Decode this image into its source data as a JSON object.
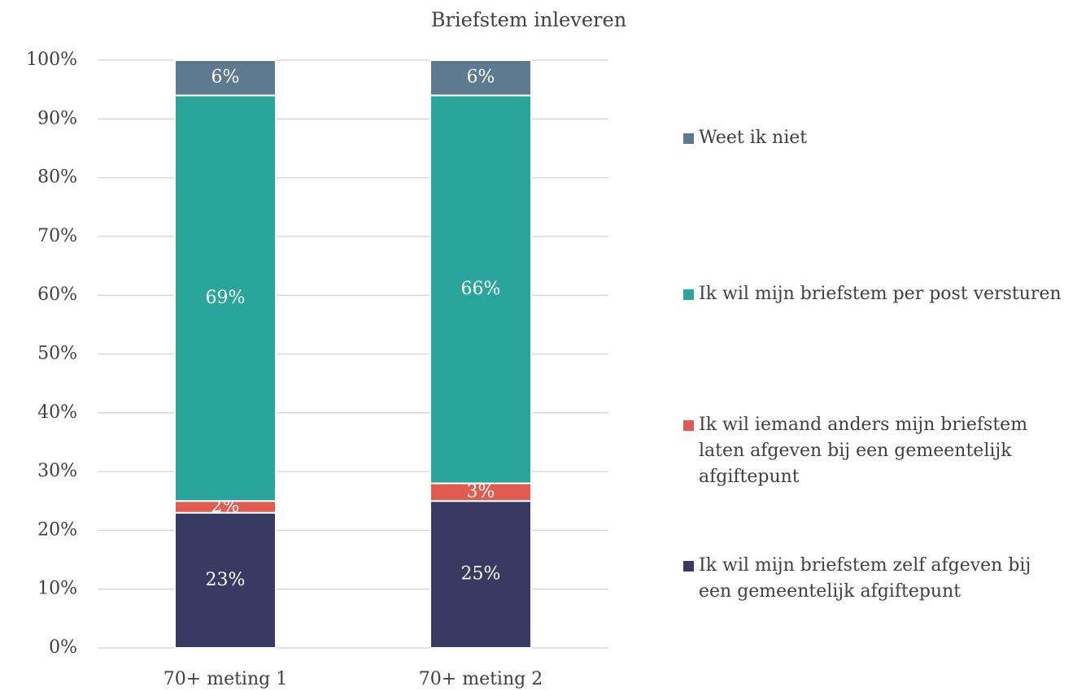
{
  "chart_data": {
    "type": "stacked_bar",
    "title": "Briefstem inleveren",
    "categories": [
      "70+ meting 1",
      "70+ meting 2"
    ],
    "series": [
      {
        "name": "Ik wil mijn briefstem zelf afgeven bij een gemeentelijk afgiftepunt",
        "color": "#383a64",
        "values": [
          23,
          25
        ],
        "value_labels": [
          "23%",
          "25%"
        ]
      },
      {
        "name": "Ik wil iemand anders mijn briefstem laten afgeven bij een gemeentelijk afgiftepunt",
        "color": "#e05c50",
        "values": [
          2,
          3
        ],
        "value_labels": [
          "2%",
          "3%"
        ]
      },
      {
        "name": "Ik wil mijn briefstem per post versturen",
        "color": "#2aa59b",
        "values": [
          69,
          66
        ],
        "value_labels": [
          "69%",
          "66%"
        ]
      },
      {
        "name": "Weet ik niet",
        "color": "#5e7a90",
        "values": [
          6,
          6
        ],
        "value_labels": [
          "6%",
          "6%"
        ]
      }
    ],
    "ylim": [
      0,
      100
    ],
    "yticks": [
      {
        "value": 0,
        "label": "0%"
      },
      {
        "value": 10,
        "label": "10%"
      },
      {
        "value": 20,
        "label": "20%"
      },
      {
        "value": 30,
        "label": "30%"
      },
      {
        "value": 40,
        "label": "40%"
      },
      {
        "value": 50,
        "label": "50%"
      },
      {
        "value": 60,
        "label": "60%"
      },
      {
        "value": 70,
        "label": "70%"
      },
      {
        "value": 80,
        "label": "80%"
      },
      {
        "value": 90,
        "label": "90%"
      },
      {
        "value": 100,
        "label": "100%"
      }
    ],
    "grid": true,
    "legend": "right"
  }
}
